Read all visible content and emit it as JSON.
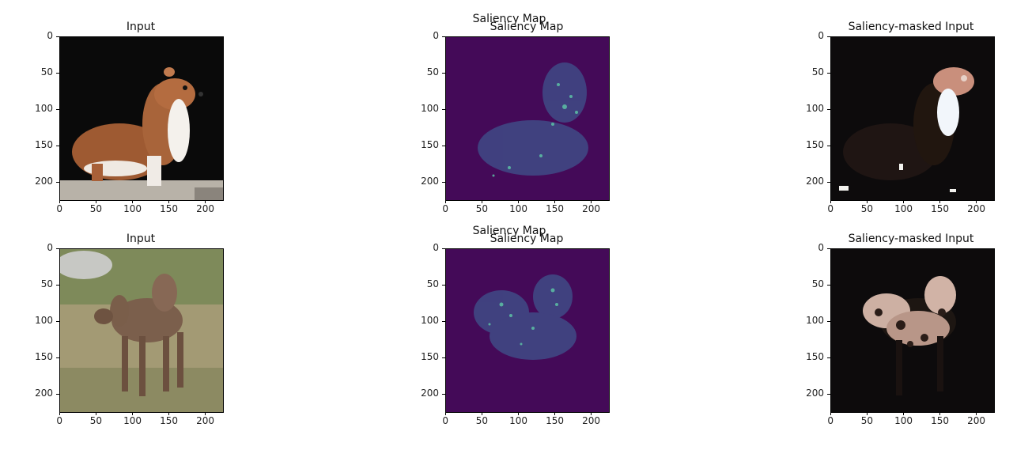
{
  "panels": [
    {
      "title": "Input"
    },
    {
      "title": "Saliency Map",
      "overlap_title": "Saliency Map"
    },
    {
      "title": "Saliency-masked Input"
    },
    {
      "title": "Input"
    },
    {
      "title": "Saliency Map",
      "overlap_title": "Saliency Map"
    },
    {
      "title": "Saliency-masked Input"
    }
  ],
  "axes": {
    "x_ticks": [
      "0",
      "50",
      "100",
      "150",
      "200"
    ],
    "y_ticks": [
      "0",
      "50",
      "100",
      "150",
      "200"
    ]
  },
  "colors": {
    "saliency_bg": "#440a58",
    "saliency_hot": "#5ec9a8",
    "mask_bg": "#0d0b0c"
  }
}
